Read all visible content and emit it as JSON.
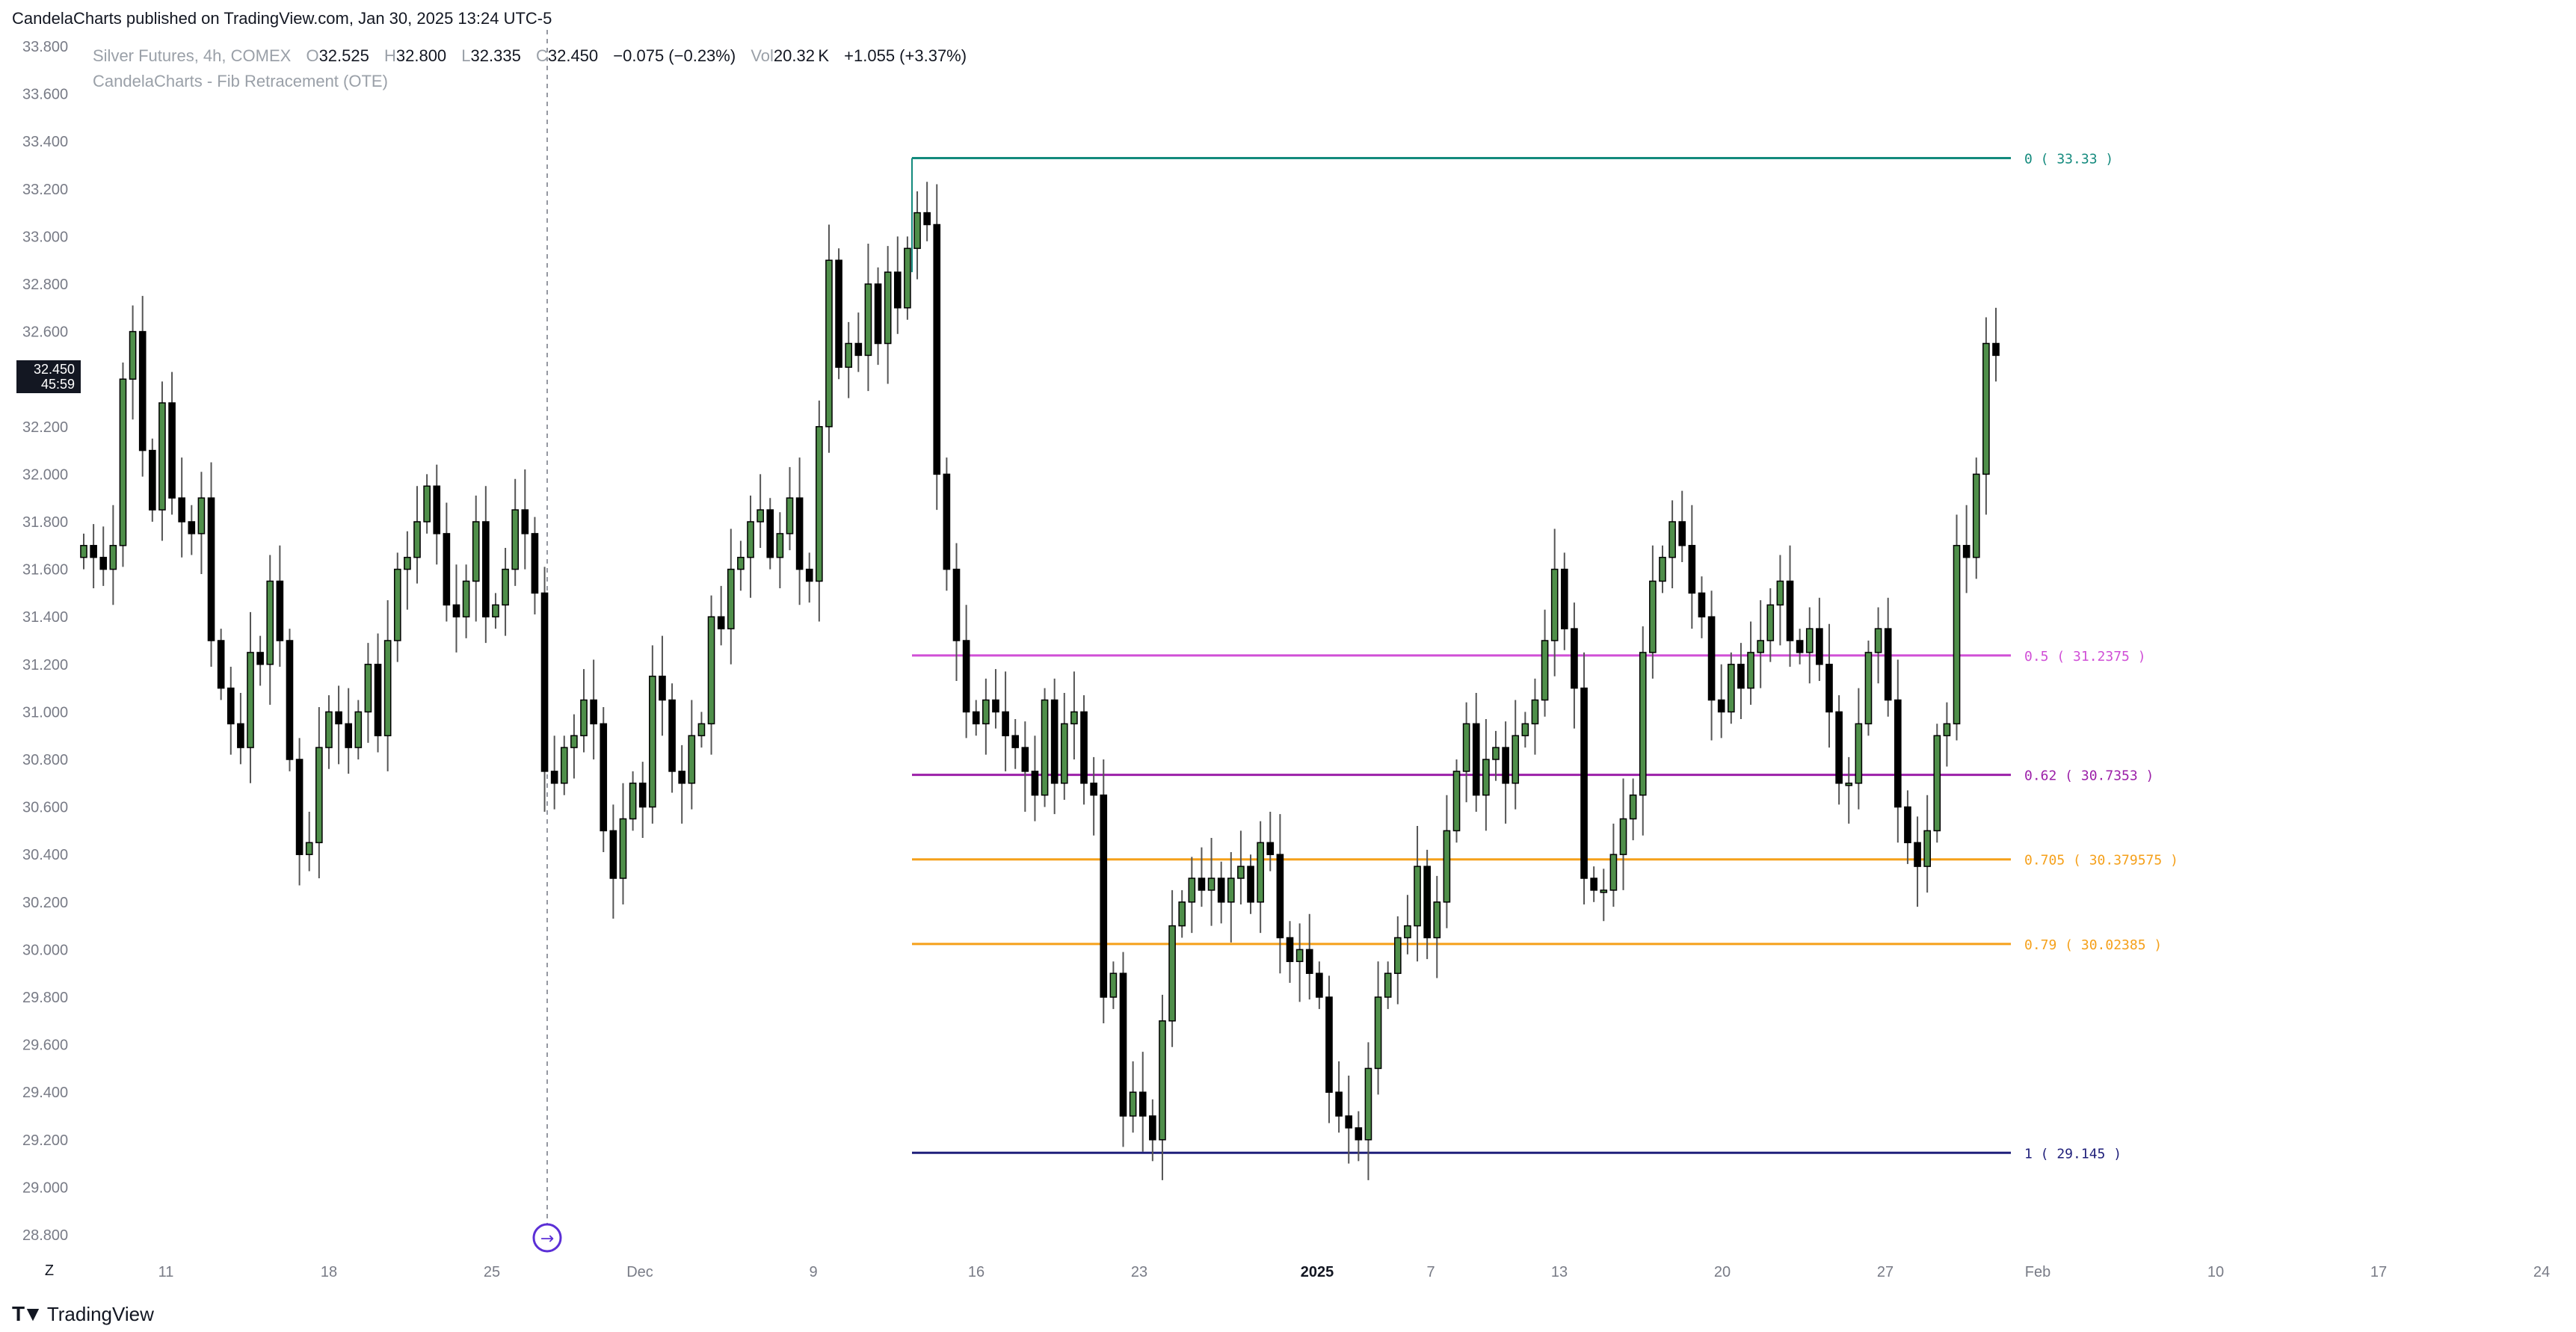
{
  "header": {
    "published_line": "CandelaCharts published on TradingView.com, Jan 30, 2025 13:24 UTC-5"
  },
  "legend": {
    "symbol": "Silver Futures, 4h, COMEX",
    "o_label": "O",
    "o_value": "32.525",
    "h_label": "H",
    "h_value": "32.800",
    "l_label": "L",
    "l_value": "32.335",
    "c_label": "C",
    "c_value": "32.450",
    "change": "−0.075 (−0.23%)",
    "vol_label": "Vol",
    "vol_value": "20.32 K",
    "vol_change": "+1.055 (+3.37%)",
    "indicator": "CandelaCharts - Fib Retracement (OTE)"
  },
  "price_badge": {
    "price": "32.450",
    "countdown": "45:59"
  },
  "timezone_button": "Z",
  "footer": {
    "brand": "TradingView",
    "logo": "tradingview-logo"
  },
  "colors": {
    "up_body": "#4f8f4a",
    "down_body": "#000000",
    "wick": "#555555",
    "fib_0": "#138a7d",
    "fib_05": "#d04fd6",
    "fib_062": "#9b1fa8",
    "fib_0705": "#f5a01a",
    "fib_079": "#f5a01a",
    "fib_1": "#1f1f7a",
    "axis_text": "#787b86",
    "vline": "#9598a1"
  },
  "chart_data": {
    "type": "candlestick",
    "ylim": [
      28.8,
      33.8
    ],
    "y_ticks": [
      "33.800",
      "33.600",
      "33.400",
      "33.200",
      "33.000",
      "32.800",
      "32.600",
      "32.400",
      "32.200",
      "32.000",
      "31.800",
      "31.600",
      "31.400",
      "31.200",
      "31.000",
      "30.800",
      "30.600",
      "30.400",
      "30.200",
      "30.000",
      "29.800",
      "29.600",
      "29.400",
      "29.200",
      "29.000",
      "28.800"
    ],
    "x_ticks": [
      "11",
      "18",
      "25",
      "Dec",
      "9",
      "16",
      "23",
      "2025",
      "7",
      "13",
      "20",
      "27",
      "Feb",
      "10",
      "17",
      "24"
    ],
    "fib_levels": [
      {
        "label": "0 ( 33.33 )",
        "value": 33.33,
        "color_key": "fib_0"
      },
      {
        "label": "0.5 ( 31.2375 )",
        "value": 31.2375,
        "color_key": "fib_05"
      },
      {
        "label": "0.62 ( 30.7353 )",
        "value": 30.7353,
        "color_key": "fib_062"
      },
      {
        "label": "0.705 ( 30.379575 )",
        "value": 30.379575,
        "color_key": "fib_0705"
      },
      {
        "label": "0.79 ( 30.02385 )",
        "value": 30.02385,
        "color_key": "fib_079"
      },
      {
        "label": "1 ( 29.145 )",
        "value": 29.145,
        "color_key": "fib_1"
      }
    ],
    "closes": [
      31.7,
      31.65,
      31.6,
      31.7,
      32.4,
      32.6,
      32.1,
      31.85,
      32.3,
      31.9,
      31.8,
      31.75,
      31.9,
      31.3,
      31.1,
      30.95,
      30.85,
      31.25,
      31.2,
      31.55,
      31.3,
      30.8,
      30.4,
      30.45,
      30.85,
      31.0,
      30.95,
      30.85,
      31.0,
      31.2,
      30.9,
      31.3,
      31.6,
      31.65,
      31.8,
      31.95,
      31.75,
      31.45,
      31.4,
      31.55,
      31.8,
      31.4,
      31.45,
      31.6,
      31.85,
      31.75,
      31.5,
      30.75,
      30.7,
      30.85,
      30.9,
      31.05,
      30.95,
      30.5,
      30.3,
      30.55,
      30.7,
      30.6,
      31.15,
      31.05,
      30.75,
      30.7,
      30.9,
      30.95,
      31.4,
      31.35,
      31.6,
      31.65,
      31.8,
      31.85,
      31.65,
      31.75,
      31.9,
      31.6,
      31.55,
      32.2,
      32.9,
      32.45,
      32.55,
      32.5,
      32.8,
      32.55,
      32.85,
      32.7,
      32.95,
      33.1,
      33.05,
      32.0,
      31.6,
      31.3,
      31.0,
      30.95,
      31.05,
      31.0,
      30.9,
      30.85,
      30.75,
      30.65,
      31.05,
      30.7,
      30.95,
      31.0,
      30.7,
      30.65,
      29.8,
      29.9,
      29.3,
      29.4,
      29.3,
      29.2,
      29.7,
      30.1,
      30.2,
      30.3,
      30.25,
      30.3,
      30.2,
      30.3,
      30.35,
      30.2,
      30.45,
      30.4,
      30.05,
      29.95,
      30.0,
      29.9,
      29.8,
      29.4,
      29.3,
      29.25,
      29.2,
      29.5,
      29.8,
      29.9,
      30.05,
      30.1,
      30.35,
      30.05,
      30.2,
      30.5,
      30.75,
      30.95,
      30.65,
      30.8,
      30.85,
      30.7,
      30.9,
      30.95,
      31.05,
      31.3,
      31.6,
      31.35,
      31.1,
      30.3,
      30.25,
      30.25,
      30.4,
      30.55,
      30.65,
      31.25,
      31.55,
      31.65,
      31.8,
      31.7,
      31.5,
      31.4,
      31.05,
      31.0,
      31.2,
      31.1,
      31.25,
      31.3,
      31.45,
      31.55,
      31.3,
      31.25,
      31.35,
      31.2,
      31.0,
      30.7,
      30.7,
      30.95,
      31.25,
      31.35,
      31.05,
      30.6,
      30.45,
      30.35,
      30.5,
      30.9,
      30.95,
      31.7,
      31.65,
      32.0,
      32.55,
      32.5
    ],
    "time_span": {
      "first_bar": "Nov 7, 2024",
      "last_bar": "Jan 30, 2025",
      "interval": "4h"
    }
  }
}
